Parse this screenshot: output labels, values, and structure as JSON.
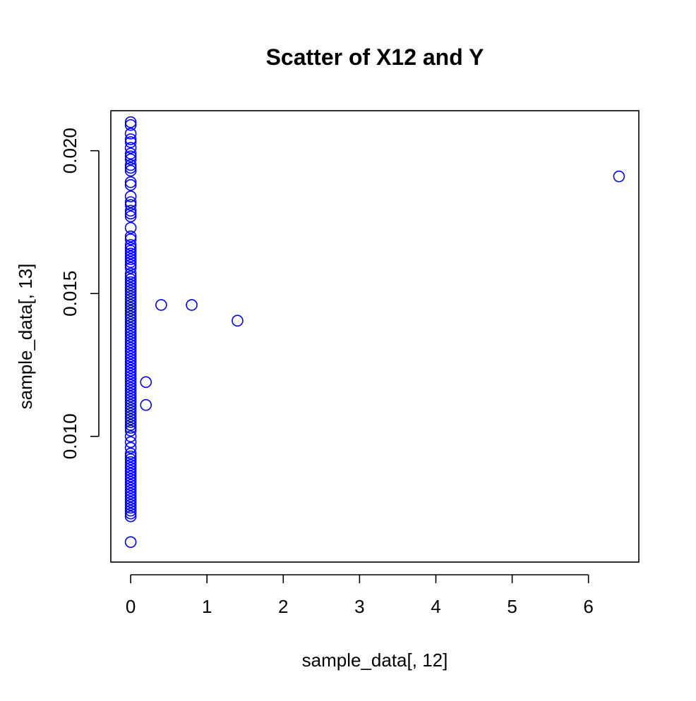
{
  "chart_data": {
    "type": "scatter",
    "title": "Scatter of X12 and Y",
    "xlabel": "sample_data[, 12]",
    "ylabel": "sample_data[, 13]",
    "xlim": [
      -0.26,
      6.66
    ],
    "ylim": [
      0.0056,
      0.0214
    ],
    "xticks": [
      0,
      1,
      2,
      3,
      4,
      5,
      6
    ],
    "xtick_labels": [
      "0",
      "1",
      "2",
      "3",
      "4",
      "5",
      "6"
    ],
    "yticks": [
      0.01,
      0.015,
      0.02
    ],
    "ytick_labels": [
      "0.010",
      "0.015",
      "0.020"
    ],
    "grid": false,
    "point_color": "#0000ff",
    "marker": "open-circle",
    "series": [
      {
        "points": [
          [
            6.4,
            0.0191
          ],
          [
            0.4,
            0.0146
          ],
          [
            0.8,
            0.0146
          ],
          [
            1.4,
            0.01405
          ],
          [
            0.2,
            0.0119
          ],
          [
            0.2,
            0.0111
          ],
          [
            0,
            0.021
          ],
          [
            0,
            0.0209
          ],
          [
            0,
            0.0206
          ],
          [
            0,
            0.0204
          ],
          [
            0,
            0.0203
          ],
          [
            0,
            0.0201
          ],
          [
            0,
            0.0199
          ],
          [
            0,
            0.0198
          ],
          [
            0,
            0.0197
          ],
          [
            0,
            0.0195
          ],
          [
            0,
            0.0194
          ],
          [
            0,
            0.0193
          ],
          [
            0,
            0.0189
          ],
          [
            0,
            0.0188
          ],
          [
            0,
            0.0184
          ],
          [
            0,
            0.0182
          ],
          [
            0,
            0.0181
          ],
          [
            0,
            0.0179
          ],
          [
            0,
            0.0178
          ],
          [
            0,
            0.0177
          ],
          [
            0,
            0.0173
          ],
          [
            0,
            0.017
          ],
          [
            0,
            0.0169
          ],
          [
            0,
            0.0167
          ],
          [
            0,
            0.0166
          ],
          [
            0,
            0.0165
          ],
          [
            0,
            0.0164
          ],
          [
            0,
            0.0163
          ],
          [
            0,
            0.0162
          ],
          [
            0,
            0.0161
          ],
          [
            0,
            0.016
          ],
          [
            0,
            0.0159
          ],
          [
            0,
            0.0157
          ],
          [
            0,
            0.0156
          ],
          [
            0,
            0.0155
          ],
          [
            0,
            0.0154
          ],
          [
            0,
            0.0153
          ],
          [
            0,
            0.0152
          ],
          [
            0,
            0.0151
          ],
          [
            0,
            0.015
          ],
          [
            0,
            0.0149
          ],
          [
            0,
            0.0148
          ],
          [
            0,
            0.0147
          ],
          [
            0,
            0.0146
          ],
          [
            0,
            0.0145
          ],
          [
            0,
            0.0144
          ],
          [
            0,
            0.0143
          ],
          [
            0,
            0.0142
          ],
          [
            0,
            0.0141
          ],
          [
            0,
            0.014
          ],
          [
            0,
            0.0139
          ],
          [
            0,
            0.0138
          ],
          [
            0,
            0.0137
          ],
          [
            0,
            0.0136
          ],
          [
            0,
            0.0135
          ],
          [
            0,
            0.0134
          ],
          [
            0,
            0.0133
          ],
          [
            0,
            0.0132
          ],
          [
            0,
            0.0131
          ],
          [
            0,
            0.013
          ],
          [
            0,
            0.0129
          ],
          [
            0,
            0.0128
          ],
          [
            0,
            0.0127
          ],
          [
            0,
            0.0126
          ],
          [
            0,
            0.0125
          ],
          [
            0,
            0.0124
          ],
          [
            0,
            0.0123
          ],
          [
            0,
            0.0122
          ],
          [
            0,
            0.0121
          ],
          [
            0,
            0.012
          ],
          [
            0,
            0.0119
          ],
          [
            0,
            0.0118
          ],
          [
            0,
            0.0117
          ],
          [
            0,
            0.0116
          ],
          [
            0,
            0.0115
          ],
          [
            0,
            0.0114
          ],
          [
            0,
            0.0113
          ],
          [
            0,
            0.0112
          ],
          [
            0,
            0.0111
          ],
          [
            0,
            0.011
          ],
          [
            0,
            0.0109
          ],
          [
            0,
            0.0108
          ],
          [
            0,
            0.0107
          ],
          [
            0,
            0.0106
          ],
          [
            0,
            0.0105
          ],
          [
            0,
            0.0104
          ],
          [
            0,
            0.0103
          ],
          [
            0,
            0.0102
          ],
          [
            0,
            0.01
          ],
          [
            0,
            0.0098
          ],
          [
            0,
            0.0096
          ],
          [
            0,
            0.0094
          ],
          [
            0,
            0.0093
          ],
          [
            0,
            0.0092
          ],
          [
            0,
            0.0091
          ],
          [
            0,
            0.009
          ],
          [
            0,
            0.0089
          ],
          [
            0,
            0.0088
          ],
          [
            0,
            0.0087
          ],
          [
            0,
            0.0086
          ],
          [
            0,
            0.0085
          ],
          [
            0,
            0.0084
          ],
          [
            0,
            0.0083
          ],
          [
            0,
            0.0082
          ],
          [
            0,
            0.0081
          ],
          [
            0,
            0.008
          ],
          [
            0,
            0.0079
          ],
          [
            0,
            0.0078
          ],
          [
            0,
            0.0077
          ],
          [
            0,
            0.0076
          ],
          [
            0,
            0.0075
          ],
          [
            0,
            0.0074
          ],
          [
            0,
            0.0073
          ],
          [
            0,
            0.0072
          ],
          [
            0,
            0.0063
          ]
        ]
      }
    ]
  }
}
